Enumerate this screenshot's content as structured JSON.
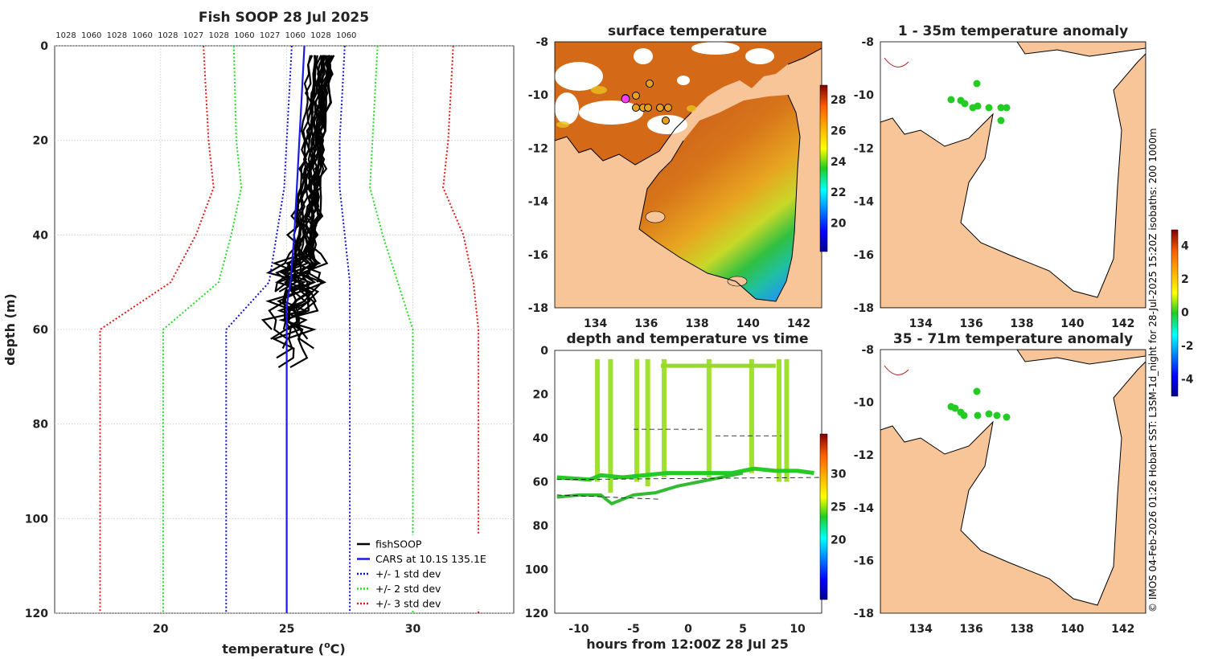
{
  "colors": {
    "ocean_bg": "#ffffff",
    "land": "#f7c598",
    "black": "#000000",
    "cars_blue": "#1a1ae6",
    "std1": "#1212d8",
    "std2": "#22dd22",
    "std3": "#e81818"
  },
  "profile_chart": {
    "title": "Fish SOOP 28 Jul 2025",
    "top_values": [
      "1028",
      "1060",
      "1028",
      "1060",
      "1028",
      "1027",
      "1028",
      "1060",
      "1027",
      "1060",
      "1028",
      "1060"
    ],
    "chart_data": {
      "type": "line",
      "xlabel": "temperature (",
      "xlabel_sup": "o",
      "xlabel_tail": "C)",
      "ylabel": "depth (m)",
      "xlim": [
        15.8,
        34.0
      ],
      "ylim": [
        120,
        0
      ],
      "xticks": [
        20,
        25,
        30
      ],
      "yticks": [
        0,
        20,
        40,
        60,
        80,
        100,
        120
      ],
      "cars_label": "CARS at 10.1S 135.1E",
      "series": [
        {
          "name": "CARS at 10.1S 135.1E",
          "style": "solid",
          "color": "#1a1ae6",
          "points": [
            [
              25.7,
              0
            ],
            [
              25.6,
              10
            ],
            [
              25.5,
              20
            ],
            [
              25.4,
              30
            ],
            [
              25.3,
              40
            ],
            [
              25.15,
              50
            ],
            [
              25.0,
              55
            ],
            [
              25.0,
              58
            ],
            [
              25.0,
              60
            ],
            [
              25.0,
              80
            ],
            [
              25.0,
              100
            ],
            [
              25.0,
              120
            ]
          ]
        },
        {
          "name": "-1 std dev",
          "style": "dotted",
          "color": "#1212d8",
          "points": [
            [
              25.2,
              0
            ],
            [
              25.1,
              10
            ],
            [
              25.0,
              20
            ],
            [
              24.9,
              30
            ],
            [
              24.6,
              40
            ],
            [
              24.3,
              50
            ],
            [
              22.6,
              60
            ],
            [
              22.6,
              80
            ],
            [
              22.6,
              100
            ],
            [
              22.6,
              120
            ]
          ]
        },
        {
          "name": "+1 std dev",
          "style": "dotted",
          "color": "#1212d8",
          "points": [
            [
              27.3,
              0
            ],
            [
              27.2,
              10
            ],
            [
              27.1,
              20
            ],
            [
              27.1,
              30
            ],
            [
              27.3,
              40
            ],
            [
              27.5,
              50
            ],
            [
              27.5,
              60
            ],
            [
              27.5,
              80
            ],
            [
              27.5,
              100
            ],
            [
              27.5,
              120
            ]
          ]
        },
        {
          "name": "-2 std dev",
          "style": "dotted",
          "color": "#22dd22",
          "points": [
            [
              22.9,
              0
            ],
            [
              22.95,
              10
            ],
            [
              23.0,
              20
            ],
            [
              23.2,
              30
            ],
            [
              22.8,
              40
            ],
            [
              22.3,
              50
            ],
            [
              20.1,
              60
            ],
            [
              20.1,
              80
            ],
            [
              20.1,
              100
            ],
            [
              20.1,
              120
            ]
          ]
        },
        {
          "name": "+2 std dev",
          "style": "dotted",
          "color": "#22dd22",
          "points": [
            [
              28.6,
              0
            ],
            [
              28.5,
              10
            ],
            [
              28.4,
              20
            ],
            [
              28.3,
              30
            ],
            [
              28.8,
              40
            ],
            [
              29.4,
              50
            ],
            [
              30.0,
              60
            ],
            [
              30.0,
              80
            ],
            [
              30.0,
              100
            ],
            [
              30.0,
              120
            ]
          ]
        },
        {
          "name": "-3 std dev",
          "style": "dotted",
          "color": "#e81818",
          "points": [
            [
              21.7,
              0
            ],
            [
              21.8,
              10
            ],
            [
              21.9,
              20
            ],
            [
              22.1,
              30
            ],
            [
              21.4,
              40
            ],
            [
              20.4,
              50
            ],
            [
              17.6,
              60
            ],
            [
              17.6,
              80
            ],
            [
              17.6,
              100
            ],
            [
              17.6,
              120
            ]
          ]
        },
        {
          "name": "+3 std dev",
          "style": "dotted",
          "color": "#e81818",
          "points": [
            [
              31.6,
              0
            ],
            [
              31.5,
              10
            ],
            [
              31.4,
              20
            ],
            [
              31.2,
              30
            ],
            [
              32.0,
              40
            ],
            [
              32.4,
              50
            ],
            [
              32.6,
              60
            ],
            [
              32.6,
              80
            ],
            [
              32.6,
              100
            ],
            [
              32.6,
              120
            ]
          ]
        }
      ]
    },
    "legend": [
      {
        "label": "fishSOOP",
        "color": "#000000",
        "style": "solid"
      },
      {
        "label": "CARS at 10.1S 135.1E",
        "color": "#1a1ae6",
        "style": "solid"
      },
      {
        "label": "+/- 1 std dev",
        "color": "#1212d8",
        "style": "dotted"
      },
      {
        "label": "+/- 2 std dev",
        "color": "#22dd22",
        "style": "dotted"
      },
      {
        "label": "+/- 3 std dev",
        "color": "#e81818",
        "style": "dotted"
      }
    ]
  },
  "sst_map": {
    "title": "surface temperature",
    "lon_ticks": [
      "134",
      "136",
      "138",
      "140",
      "142"
    ],
    "lat_ticks": [
      "-8",
      "-10",
      "-12",
      "-14",
      "-16",
      "-18"
    ],
    "colorbar_ticks": [
      "28",
      "26",
      "24",
      "22",
      "20"
    ]
  },
  "timeseries": {
    "title": "depth and temperature vs time",
    "xlabel": "hours from 12:00Z 28 Jul 25",
    "x_ticks": [
      "-10",
      "-5",
      "0",
      "5",
      "10"
    ],
    "y_ticks": [
      "0",
      "20",
      "40",
      "60",
      "80",
      "100",
      "120"
    ],
    "colorbar_ticks": [
      "30",
      "25",
      "20"
    ]
  },
  "anom_map_1": {
    "title": "1 - 35m temperature anomaly",
    "lon_ticks": [
      "134",
      "136",
      "138",
      "140",
      "142"
    ],
    "lat_ticks": [
      "-8",
      "-10",
      "-12",
      "-14",
      "-16",
      "-18"
    ]
  },
  "anom_map_2": {
    "title": "35 - 71m temperature anomaly",
    "lon_ticks": [
      "134",
      "136",
      "138",
      "140",
      "142"
    ],
    "lat_ticks": [
      "-8",
      "-10",
      "-12",
      "-14",
      "-16",
      "-18"
    ]
  },
  "anomaly_colorbar_ticks": [
    "4",
    "2",
    "0",
    "-2",
    "-4"
  ],
  "side_note": "© IMOS 04-Feb-2026 01:26 Hobart SST: L3SM-1d_night for 28-Jul-2025 15:20Z isobaths: 200  1000m"
}
